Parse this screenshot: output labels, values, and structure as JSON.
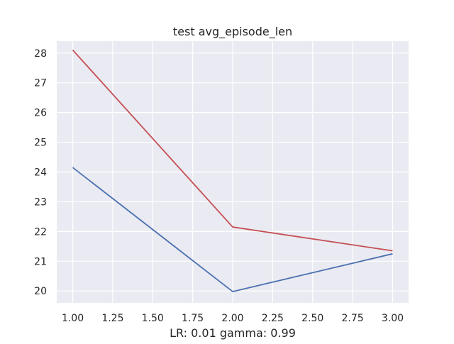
{
  "chart_data": {
    "type": "line",
    "title": "test avg_episode_len",
    "xlabel": "LR: 0.01 gamma: 0.99",
    "ylabel": "",
    "x": [
      1,
      2,
      3
    ],
    "series": [
      {
        "color": "#c44e52",
        "values": [
          28.1,
          22.15,
          21.35
        ]
      },
      {
        "color": "#4c72b0",
        "values": [
          24.15,
          19.98,
          21.25
        ]
      }
    ],
    "xlim": [
      0.9,
      3.1
    ],
    "ylim": [
      19.6,
      28.4
    ],
    "xticks": [
      "1.00",
      "1.25",
      "1.50",
      "1.75",
      "2.00",
      "2.25",
      "2.50",
      "2.75",
      "3.00"
    ],
    "yticks": [
      "20",
      "21",
      "22",
      "23",
      "24",
      "25",
      "26",
      "27",
      "28"
    ],
    "grid": true,
    "background": "#eaeaf2"
  }
}
